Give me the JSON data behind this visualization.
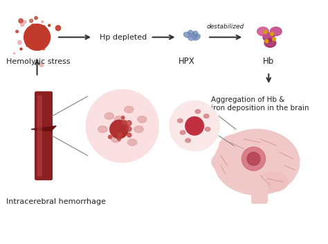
{
  "bg_color": "#ffffff",
  "title": "",
  "labels": {
    "hemolytic_stress": "Hemolytic stress",
    "hp_depleted": "Hp depleted",
    "destabilized": "destabilized",
    "hpx": "HPX",
    "hb": "Hb",
    "aggregation": "Aggregation of Hb &\niron deposition in the brain",
    "intracerebral": "Intracerebral hemorrhage"
  },
  "col_red_dark": "#8B1A1A",
  "col_red_medium": "#C0392B",
  "col_red_light": "#E8A0A0",
  "col_pink_light": "#F0C0C0",
  "col_pink_medium": "#D08080",
  "col_blood_red": "#B22222",
  "col_magenta": "#C0407A",
  "col_blue_protein": "#6080B0",
  "col_purple_hb": "#A03070",
  "col_text": "#222222",
  "col_arrow": "#333333",
  "col_vessel": "#8B2020",
  "col_brain": "#F0C8C8",
  "col_brain_edge": "#D09090",
  "col_circle_bg": "#FAE0E0",
  "col_circle_edge": "#C0A0A0",
  "col_spot": "#E0A0A0",
  "col_hem1": "#D06070",
  "col_hem2": "#B04050",
  "col_sulci": "#D09090",
  "col_grey": "#808080",
  "col_gold": "#D4A000"
}
